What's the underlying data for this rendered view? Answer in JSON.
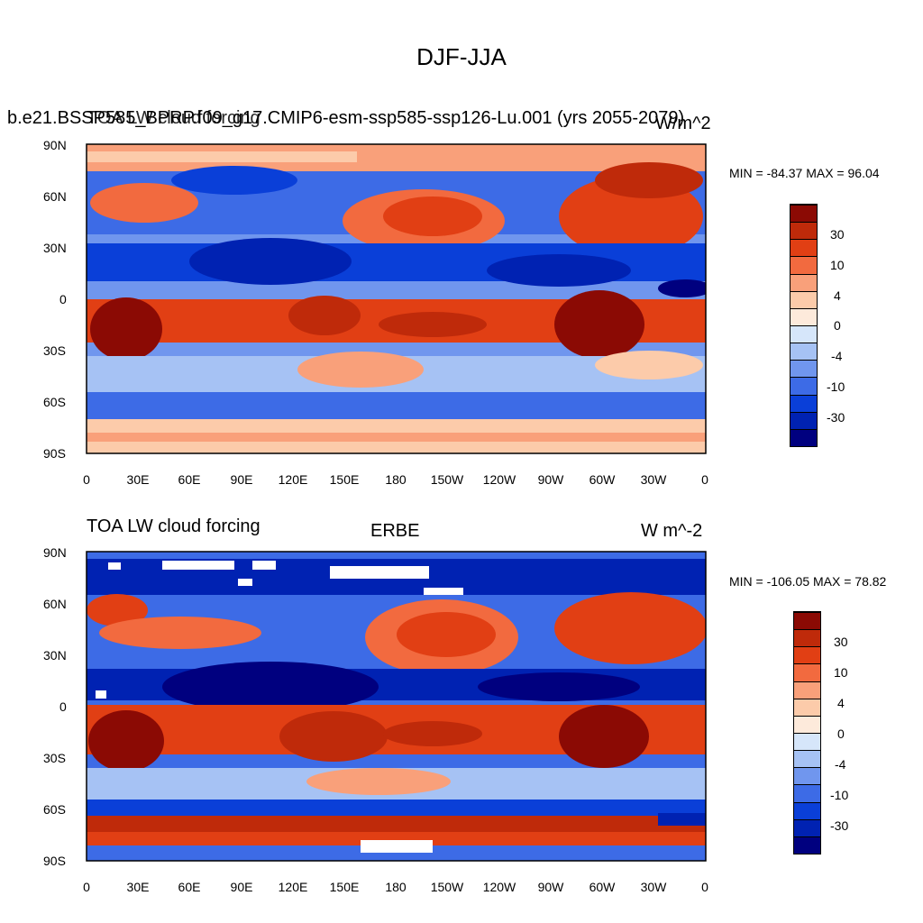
{
  "title": "DJF-JJA",
  "lon_ticks": [
    "0",
    "30E",
    "60E",
    "90E",
    "120E",
    "150E",
    "180",
    "150W",
    "120W",
    "90W",
    "60W",
    "30W",
    "0"
  ],
  "lat_ticks": [
    "90N",
    "60N",
    "30N",
    "0",
    "30S",
    "60S",
    "90S"
  ],
  "colorbar_labels": [
    "30",
    "10",
    "4",
    "0",
    "-4",
    "-10",
    "-30"
  ],
  "colorbar_colors": [
    "#00007f",
    "#0022b2",
    "#0a3fd8",
    "#3d6be6",
    "#7096ee",
    "#a6c2f4",
    "#d6e6fa",
    "#fdeadb",
    "#fccbaa",
    "#f9a07a",
    "#f26a3f",
    "#e13f14",
    "#bf2a0a",
    "#8b0a04"
  ],
  "panels": [
    {
      "left_title": "b.e21.BSSP585_BPRP.f09_g17.CMIP6-esm-ssp585-ssp126-Lu.001 (yrs 2055-2079)",
      "overlay_title": "TOA LW cloud forcing",
      "center_title": "",
      "units": "W/m^2",
      "minmax": "MIN = -84.37 MAX =  96.04"
    },
    {
      "left_title": "TOA LW cloud forcing",
      "overlay_title": "",
      "center_title": "ERBE",
      "units": "W m^-2",
      "minmax": "MIN = -106.05 MAX =  78.82"
    }
  ]
}
